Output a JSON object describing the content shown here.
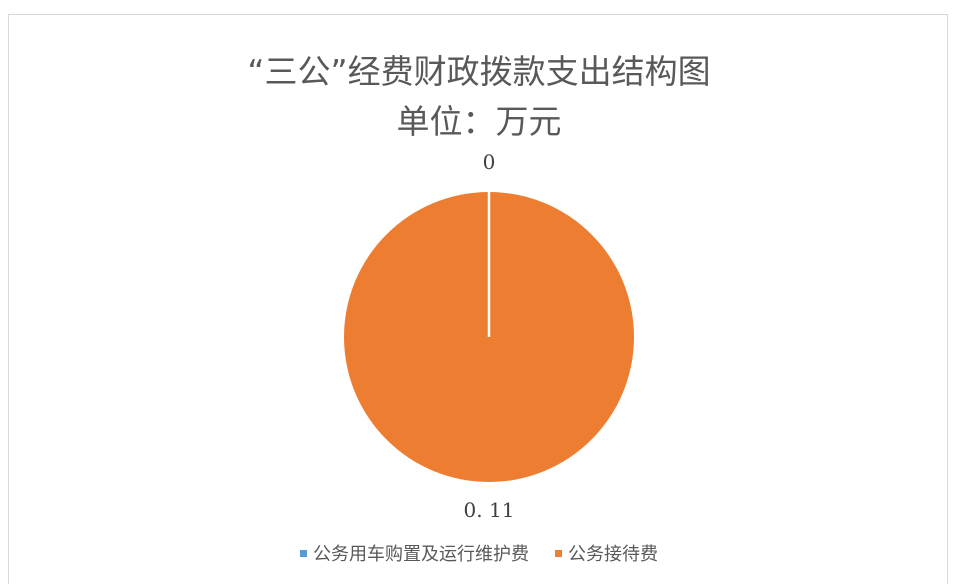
{
  "chart_data": {
    "type": "pie",
    "title": "“三公”经费财政拨款支出结构图",
    "subtitle": "单位：万元",
    "categories": [
      "公务用车购置及运行维护费",
      "公务接待费"
    ],
    "values": [
      0,
      0.11
    ],
    "data_labels": [
      "0",
      "0. 11"
    ],
    "colors": [
      "#5b9bd5",
      "#ed7d31"
    ],
    "legend_position": "bottom"
  }
}
